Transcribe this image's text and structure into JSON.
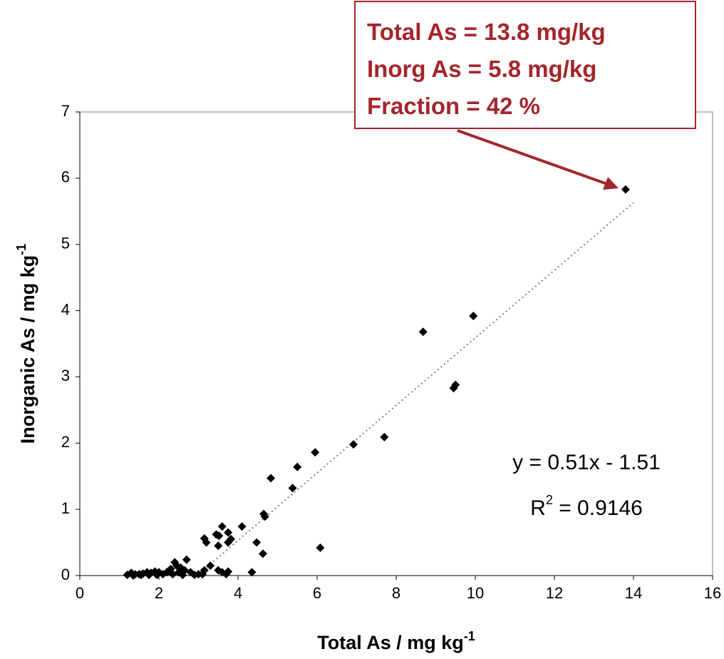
{
  "chart_data": {
    "type": "scatter",
    "xlabel": "Total As / mg kg",
    "xlabel_sup": "-1",
    "ylabel": "Inorganic As / mg kg",
    "ylabel_sup": "-1",
    "xlim": [
      0,
      16
    ],
    "xticks": [
      0,
      2,
      4,
      6,
      8,
      10,
      12,
      14,
      16
    ],
    "ylim": [
      0,
      7
    ],
    "yticks": [
      0,
      1,
      2,
      3,
      4,
      5,
      6,
      7
    ],
    "grid": false,
    "series": [
      {
        "color": "#000000",
        "x": [
          13.8,
          9.95,
          8.68,
          9.5,
          9.45,
          7.7,
          6.92,
          5.95,
          5.5,
          4.83,
          5.38,
          4.65,
          4.68,
          4.1,
          3.6,
          3.82,
          3.75,
          3.75,
          3.45,
          3.52,
          3.15,
          3.2,
          3.5,
          4.47,
          4.63,
          6.08,
          4.35,
          3.75,
          3.6,
          3.5,
          3.3,
          3.15,
          3.1,
          2.7,
          2.4,
          2.55,
          2.3,
          2.65,
          2.8,
          2.5,
          2.2,
          2.0,
          1.9,
          1.8,
          1.7,
          1.6,
          1.5,
          1.4,
          1.3,
          1.2,
          1.35,
          1.55,
          1.75,
          1.95,
          2.1,
          2.35,
          2.6,
          2.9,
          3.0,
          3.7,
          2.45,
          2.25
        ],
        "y": [
          5.83,
          3.92,
          3.68,
          2.88,
          2.83,
          2.09,
          1.98,
          1.86,
          1.64,
          1.47,
          1.32,
          0.93,
          0.89,
          0.74,
          0.74,
          0.55,
          0.65,
          0.5,
          0.62,
          0.6,
          0.56,
          0.5,
          0.45,
          0.5,
          0.33,
          0.42,
          0.05,
          0.06,
          0.05,
          0.08,
          0.15,
          0.08,
          0.02,
          0.24,
          0.2,
          0.12,
          0.1,
          0.08,
          0.05,
          0.05,
          0.05,
          0.05,
          0.06,
          0.04,
          0.05,
          0.03,
          0.02,
          0.02,
          0.04,
          0.01,
          0.0,
          0.01,
          0.01,
          0.01,
          0.02,
          0.02,
          0.01,
          0.01,
          0.02,
          0.02,
          0.15,
          0.07
        ]
      }
    ],
    "trendline": {
      "slope": 0.51,
      "intercept": -1.51,
      "x": [
        2.96,
        14
      ],
      "color": "#808080",
      "equation": "y = 0.51x - 1.51",
      "r2_symbol": "R",
      "r2_sup": "2",
      "r2_text": " = 0.9146"
    },
    "annotation": {
      "lines": [
        "Total As = 13.8 mg/kg",
        "Inorg As = 5.8 mg/kg",
        "Fraction = 42 %"
      ],
      "color": "#a4262c"
    }
  }
}
